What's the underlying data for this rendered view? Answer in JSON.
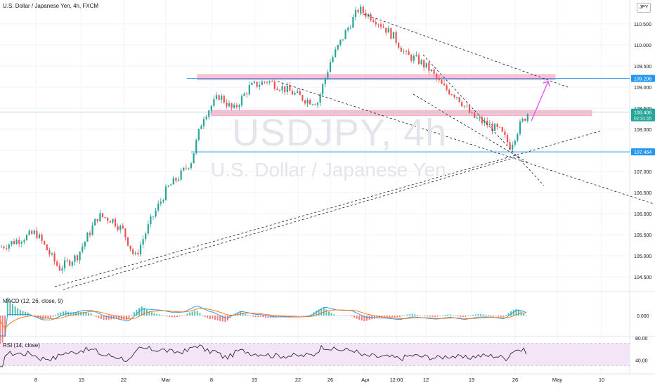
{
  "chart_data": {
    "type": "candlestick",
    "header": "U.S. Dollar / Japanese Yen, 4h, FXCM",
    "symbol_watermark": "USDJPY, 4h",
    "name_watermark": "U.S. Dollar / Japanese Yen",
    "currency_badge": "JPY",
    "price_axis": {
      "ticks": [
        "110.500",
        "110.000",
        "109.500",
        "109.000",
        "108.500",
        "108.000",
        "107.500",
        "107.000",
        "106.500",
        "106.000",
        "105.500",
        "105.000",
        "104.500"
      ]
    },
    "time_axis": {
      "ticks": [
        "8",
        "15",
        "22",
        "Mar",
        "8",
        "15",
        "22",
        "26",
        "Apr",
        "12:00",
        "12",
        "19",
        "26",
        "May",
        "10"
      ]
    },
    "price_series": [
      {
        "d": "Feb 5",
        "close": 105.2
      },
      {
        "d": "Feb 8",
        "close": 105.55
      },
      {
        "d": "Feb 10",
        "close": 104.7
      },
      {
        "d": "Feb 12",
        "close": 105.0
      },
      {
        "d": "Feb 15",
        "close": 105.95
      },
      {
        "d": "Feb 17",
        "close": 105.85
      },
      {
        "d": "Feb 19",
        "close": 105.6
      },
      {
        "d": "Feb 22",
        "close": 104.95
      },
      {
        "d": "Feb 24",
        "close": 105.85
      },
      {
        "d": "Feb 26",
        "close": 106.6
      },
      {
        "d": "Mar 1",
        "close": 106.9
      },
      {
        "d": "Mar 3",
        "close": 107.25
      },
      {
        "d": "Mar 5",
        "close": 108.3
      },
      {
        "d": "Mar 8",
        "close": 108.8
      },
      {
        "d": "Mar 10",
        "close": 108.45
      },
      {
        "d": "Mar 12",
        "close": 109.0
      },
      {
        "d": "Mar 15",
        "close": 109.15
      },
      {
        "d": "Mar 17",
        "close": 109.0
      },
      {
        "d": "Mar 19",
        "close": 108.85
      },
      {
        "d": "Mar 22",
        "close": 108.7
      },
      {
        "d": "Mar 24",
        "close": 108.65
      },
      {
        "d": "Mar 26",
        "close": 109.6
      },
      {
        "d": "Mar 29",
        "close": 110.25
      },
      {
        "d": "Mar 31",
        "close": 110.85
      },
      {
        "d": "Apr 2",
        "close": 110.6
      },
      {
        "d": "Apr 5",
        "close": 110.2
      },
      {
        "d": "Apr 7",
        "close": 109.75
      },
      {
        "d": "Apr 9",
        "close": 109.65
      },
      {
        "d": "Apr 12",
        "close": 109.4
      },
      {
        "d": "Apr 14",
        "close": 109.0
      },
      {
        "d": "Apr 16",
        "close": 108.8
      },
      {
        "d": "Apr 19",
        "close": 108.3
      },
      {
        "d": "Apr 21",
        "close": 108.1
      },
      {
        "d": "Apr 23",
        "close": 107.95
      },
      {
        "d": "Apr 26",
        "close": 107.6
      },
      {
        "d": "Apr 27",
        "close": 108.1
      },
      {
        "d": "Apr 28",
        "close": 108.41
      }
    ],
    "levels": [
      {
        "label": "109.206",
        "price": 109.206
      },
      {
        "label": "108.406",
        "price": 108.406,
        "sub": "02:31:15"
      },
      {
        "label": "107.464",
        "price": 107.464
      }
    ],
    "zones": [
      {
        "from": 109.17,
        "to": 109.3
      },
      {
        "from": 108.32,
        "to": 108.45
      }
    ],
    "macd": {
      "label": "MACD (12, 26, close, 9)",
      "tick": "0.000"
    },
    "rsi": {
      "label": "RSI (14, close)",
      "ticks": [
        "80.00",
        "40.00"
      ],
      "band": [
        30,
        70
      ]
    },
    "colors": {
      "up": "#26a69a",
      "down": "#ef5350",
      "level_line": "#2196f3",
      "label_bg": "#2196f3",
      "current_bg": "#26a69a",
      "zone": "#f8bbd0",
      "zone_edge": "#f48fb1",
      "projection": "#e040fb",
      "macd_line": "#2196f3",
      "signal_line": "#ff6d00",
      "rsi_line": "#131722",
      "rsi_band": "#f3e5f5"
    }
  }
}
